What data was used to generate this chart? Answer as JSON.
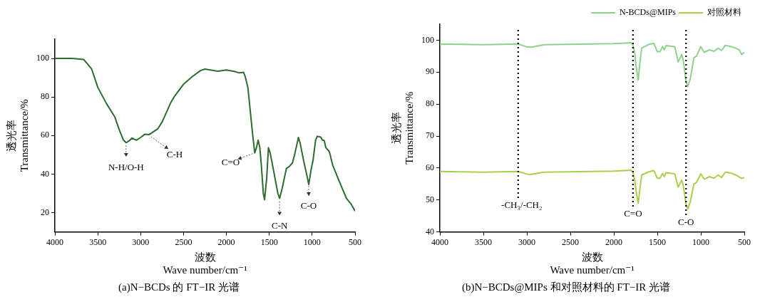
{
  "chart_data": [
    {
      "type": "line",
      "title": "(a)N−BCDs 的 FT−IR 光谱",
      "xlabel": "波数\nWave number/cm⁻¹",
      "ylabel": "透光率\nTransmittance/%",
      "xlim": [
        4000,
        500
      ],
      "ylim": [
        10,
        110
      ],
      "xticks": [
        4000,
        3500,
        3000,
        2500,
        2000,
        1500,
        1000,
        500
      ],
      "yticks": [
        20,
        40,
        60,
        80,
        100
      ],
      "grid": false,
      "legend": false,
      "marker": "none",
      "series": [
        {
          "color": "#2e6b2e",
          "x": [
            4000,
            3800,
            3665,
            3571,
            3500,
            3400,
            3300,
            3250,
            3200,
            3170,
            3130,
            3100,
            3050,
            3000,
            2950,
            2900,
            2850,
            2800,
            2750,
            2700,
            2650,
            2600,
            2500,
            2400,
            2300,
            2250,
            2100,
            2000,
            1900,
            1850,
            1800,
            1780,
            1750,
            1720,
            1700,
            1670,
            1650,
            1630,
            1610,
            1590,
            1570,
            1555,
            1530,
            1510,
            1490,
            1450,
            1400,
            1380,
            1350,
            1300,
            1270,
            1230,
            1200,
            1160,
            1140,
            1100,
            1060,
            1040,
            1010,
            990,
            960,
            940,
            900,
            880,
            860,
            840,
            800,
            760,
            700,
            650,
            600,
            550,
            500
          ],
          "values": [
            100,
            100,
            99.5,
            94.5,
            85,
            76.7,
            69.5,
            63,
            57.6,
            56.3,
            57.4,
            58.7,
            57.6,
            59,
            60.7,
            60.5,
            62,
            63.5,
            67,
            72,
            77,
            80.7,
            86.6,
            90.5,
            93.8,
            94.5,
            93.4,
            94,
            93.2,
            92.5,
            92.8,
            90.5,
            85,
            72,
            63,
            51,
            53.7,
            57.6,
            53.7,
            43,
            30,
            26.7,
            38,
            53.7,
            51,
            41.8,
            30,
            27.4,
            32.6,
            43,
            43.8,
            45.8,
            51,
            59,
            56,
            47,
            39,
            34.6,
            43,
            47,
            57.6,
            59.6,
            59.2,
            57.6,
            57.4,
            53.7,
            51.7,
            44.5,
            38,
            32.6,
            27.4,
            24.7,
            20.8
          ]
        }
      ],
      "annotations": [
        {
          "text": "N-H/O-H",
          "x": 3170,
          "y": 56
        },
        {
          "text": "C-H",
          "x": 2900,
          "y": 60
        },
        {
          "text": "C=O",
          "x": 1670,
          "y": 51
        },
        {
          "text": "C-N",
          "x": 1380,
          "y": 27
        },
        {
          "text": "C-O",
          "x": 1040,
          "y": 35
        }
      ]
    },
    {
      "type": "line",
      "title": "(b)N−BCDs@MIPs 和对照材料的 FT−IR 光谱",
      "xlabel": "波数\nWave number/cm⁻¹",
      "ylabel": "透光率\nTransmittance/%",
      "xlim": [
        4000,
        500
      ],
      "ylim": [
        40,
        105
      ],
      "xticks": [
        4000,
        3500,
        3000,
        2500,
        2000,
        1500,
        1000,
        500
      ],
      "yticks": [
        40,
        50,
        60,
        70,
        80,
        90,
        100
      ],
      "grid": false,
      "legend": "top right",
      "marker": "none",
      "x": [
        4000,
        3500,
        3100,
        3000,
        2950,
        2800,
        2000,
        1800,
        1780,
        1760,
        1740,
        1720,
        1700,
        1680,
        1600,
        1540,
        1500,
        1470,
        1440,
        1420,
        1400,
        1300,
        1260,
        1220,
        1200,
        1170,
        1150,
        1120,
        1080,
        1050,
        1000,
        960,
        900,
        850,
        800,
        760,
        720,
        650,
        600,
        560,
        530,
        500
      ],
      "series": [
        {
          "name": "N-BCDs@MIPs",
          "color": "#8fd18a",
          "values": [
            98.8,
            98.6,
            98.8,
            97.9,
            97.8,
            98.6,
            98.9,
            99.2,
            98.5,
            96,
            91,
            87.5,
            93,
            97.5,
            98.7,
            99,
            96.4,
            96.4,
            98,
            97,
            98.3,
            98,
            93.2,
            95.5,
            93.5,
            87,
            85.5,
            88,
            94.5,
            95,
            98,
            96.2,
            97,
            96.5,
            97.5,
            96.8,
            98.4,
            98,
            97.5,
            97,
            95.5,
            96.2
          ]
        },
        {
          "name": "对照材料",
          "color": "#a8d04a",
          "values": [
            58.9,
            58.7,
            58.9,
            58.1,
            58,
            58.7,
            59,
            59.3,
            58.6,
            56,
            52,
            49,
            53.5,
            57.8,
            58.8,
            59.2,
            56.8,
            56.8,
            58.3,
            57.3,
            58.5,
            58.2,
            54,
            56.2,
            54.3,
            48.5,
            47.2,
            49.5,
            55,
            55.5,
            58.2,
            56.5,
            57.3,
            56.8,
            57.8,
            57,
            58.7,
            58.4,
            57.8,
            57.2,
            56.7,
            57
          ]
        }
      ],
      "ref_lines": [
        {
          "axis": "x",
          "value": 3100,
          "label": "-CH₃/-CH₂",
          "line_style": "dotted",
          "color": "#000000"
        },
        {
          "axis": "x",
          "value": 1780,
          "label": "C=O",
          "line_style": "dotted",
          "color": "#000000"
        },
        {
          "axis": "x",
          "value": 1170,
          "label": "C-O",
          "line_style": "dotted",
          "color": "#000000"
        }
      ]
    }
  ]
}
